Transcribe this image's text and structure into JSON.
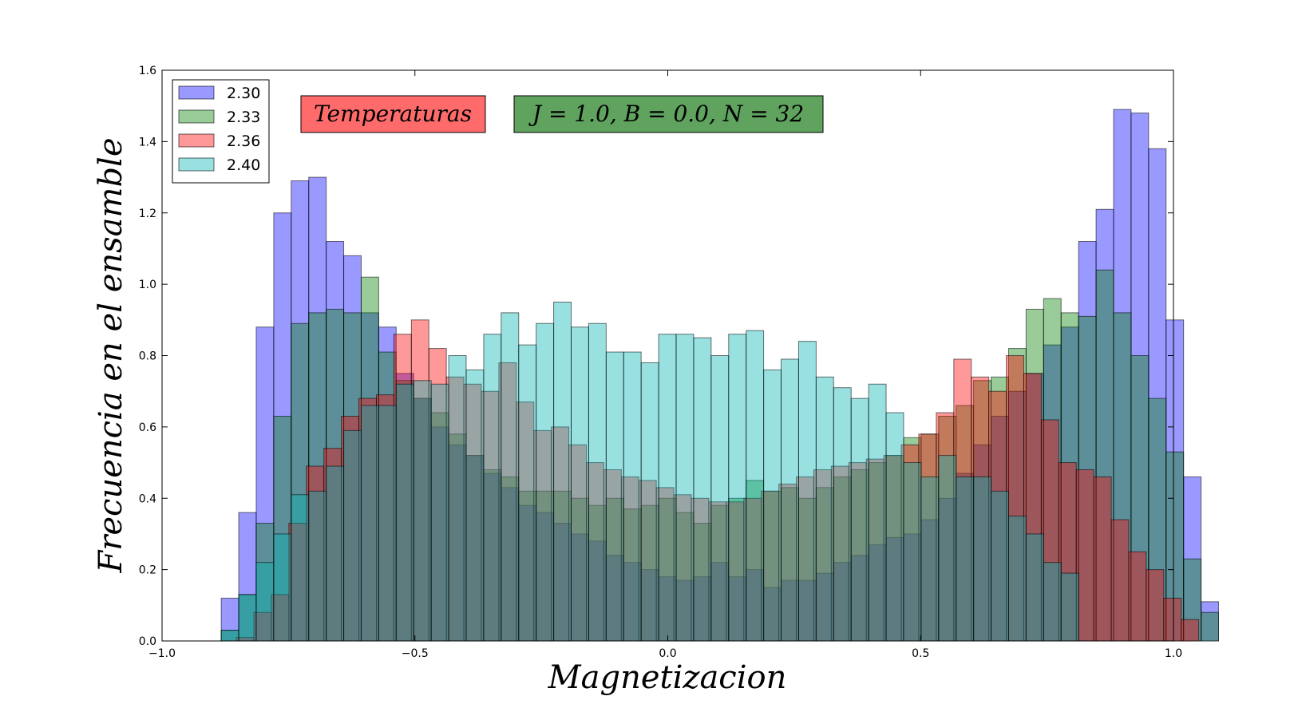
{
  "chart_data": {
    "type": "bar",
    "subtype": "overlapping-histogram",
    "xlabel": "Magnetizacion",
    "ylabel": "Frecuencia en el ensamble",
    "xlim": [
      -1.0,
      1.0
    ],
    "ylim": [
      0.0,
      1.6
    ],
    "xticks": [
      "−1.0",
      "−0.5",
      "0.0",
      "0.5",
      "1.0"
    ],
    "xtick_values": [
      -1.0,
      -0.5,
      0.0,
      0.5,
      1.0
    ],
    "yticks": [
      "0.0",
      "0.2",
      "0.4",
      "0.6",
      "0.8",
      "1.0",
      "1.2",
      "1.4",
      "1.6"
    ],
    "ytick_values": [
      0.0,
      0.2,
      0.4,
      0.6,
      0.8,
      1.0,
      1.2,
      1.4,
      1.6
    ],
    "grid": false,
    "legend_position": "top-left",
    "alpha": 0.4,
    "annotations": [
      {
        "text": "Temperaturas",
        "color": "#ff6b6b",
        "position": "upper-left"
      },
      {
        "text": "J = 1.0, B = 0.0, N = 32",
        "color": "#5fa35f",
        "position": "upper-center"
      }
    ],
    "series": [
      {
        "name": "2.30",
        "color": "#0000ff",
        "x_start": -0.883,
        "bin_width": 0.0346,
        "values": [
          0.12,
          0.36,
          0.88,
          1.2,
          1.29,
          1.3,
          1.12,
          1.08,
          0.92,
          0.88,
          0.75,
          0.68,
          0.6,
          0.55,
          0.52,
          0.47,
          0.43,
          0.38,
          0.36,
          0.33,
          0.3,
          0.28,
          0.24,
          0.22,
          0.2,
          0.18,
          0.17,
          0.18,
          0.22,
          0.18,
          0.2,
          0.15,
          0.17,
          0.17,
          0.19,
          0.22,
          0.24,
          0.27,
          0.29,
          0.3,
          0.34,
          0.4,
          0.47,
          0.55,
          0.63,
          0.7,
          0.75,
          0.83,
          0.88,
          1.12,
          1.21,
          1.49,
          1.48,
          1.38,
          0.9,
          0.46,
          0.11
        ]
      },
      {
        "name": "2.33",
        "color": "#008000",
        "x_start": -0.883,
        "bin_width": 0.0346,
        "values": [
          0.03,
          0.13,
          0.33,
          0.63,
          0.89,
          0.92,
          0.93,
          0.92,
          1.02,
          0.81,
          0.73,
          0.68,
          0.64,
          0.58,
          0.52,
          0.48,
          0.46,
          0.42,
          0.42,
          0.42,
          0.4,
          0.38,
          0.4,
          0.37,
          0.38,
          0.4,
          0.36,
          0.33,
          0.38,
          0.4,
          0.45,
          0.42,
          0.43,
          0.4,
          0.43,
          0.46,
          0.48,
          0.5,
          0.52,
          0.57,
          0.58,
          0.63,
          0.66,
          0.73,
          0.74,
          0.82,
          0.93,
          0.96,
          0.92,
          0.91,
          1.04,
          0.92,
          0.8,
          0.68,
          0.53,
          0.23,
          0.08
        ]
      },
      {
        "name": "2.36",
        "color": "#ff0000",
        "x_start": -0.853,
        "bin_width": 0.0346,
        "values": [
          0.01,
          0.08,
          0.13,
          0.33,
          0.49,
          0.54,
          0.63,
          0.68,
          0.69,
          0.86,
          0.9,
          0.82,
          0.74,
          0.72,
          0.7,
          0.78,
          0.67,
          0.59,
          0.6,
          0.55,
          0.5,
          0.48,
          0.46,
          0.45,
          0.43,
          0.41,
          0.4,
          0.39,
          0.39,
          0.4,
          0.42,
          0.44,
          0.46,
          0.48,
          0.49,
          0.5,
          0.51,
          0.52,
          0.55,
          0.58,
          0.64,
          0.79,
          0.74,
          0.7,
          0.8,
          0.75,
          0.62,
          0.5,
          0.48,
          0.46,
          0.34,
          0.25,
          0.2,
          0.12,
          0.06
        ]
      },
      {
        "name": "2.40",
        "color": "#00b3b3",
        "x_start": -0.883,
        "bin_width": 0.0346,
        "values": [
          0.03,
          0.13,
          0.22,
          0.3,
          0.41,
          0.42,
          0.49,
          0.59,
          0.66,
          0.66,
          0.72,
          0.73,
          0.72,
          0.8,
          0.76,
          0.86,
          0.92,
          0.83,
          0.89,
          0.95,
          0.88,
          0.89,
          0.81,
          0.81,
          0.78,
          0.86,
          0.86,
          0.85,
          0.8,
          0.86,
          0.87,
          0.76,
          0.79,
          0.84,
          0.74,
          0.71,
          0.68,
          0.72,
          0.64,
          0.5,
          0.46,
          0.52,
          0.46,
          0.46,
          0.42,
          0.35,
          0.3,
          0.22,
          0.19
        ]
      }
    ]
  },
  "legend": {
    "items": [
      {
        "label": "2.30",
        "color": "#0000ff"
      },
      {
        "label": "2.33",
        "color": "#008000"
      },
      {
        "label": "2.36",
        "color": "#ff0000"
      },
      {
        "label": "2.40",
        "color": "#00b3b3"
      }
    ]
  },
  "text_boxes": {
    "temperaturas": "Temperaturas",
    "params": "J = 1.0, B = 0.0, N = 32"
  }
}
